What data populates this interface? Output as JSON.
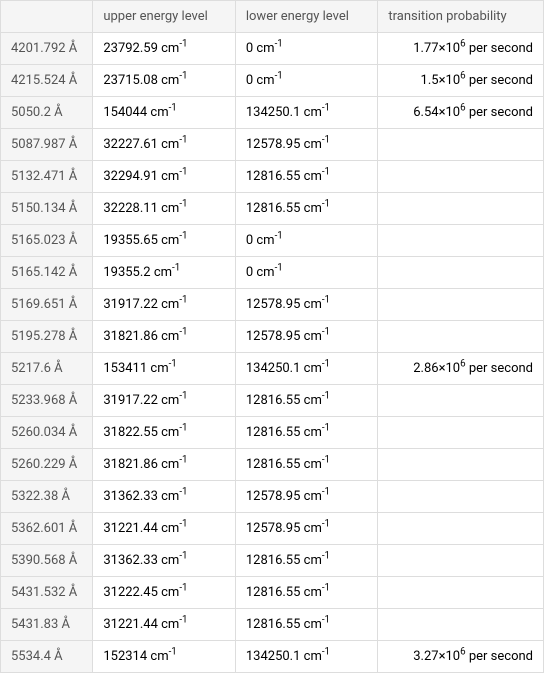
{
  "table": {
    "columns": [
      "",
      "upper energy level",
      "lower energy level",
      "transition probability"
    ],
    "rows": [
      {
        "wavelength": "4201.792 Å",
        "upper": "23792.59",
        "lower": "0",
        "prob_mantissa": "1.77",
        "prob_exp": "6",
        "prob_unit": "per second"
      },
      {
        "wavelength": "4215.524 Å",
        "upper": "23715.08",
        "lower": "0",
        "prob_mantissa": "1.5",
        "prob_exp": "6",
        "prob_unit": "per second"
      },
      {
        "wavelength": "5050.2 Å",
        "upper": "154044",
        "lower": "134250.1",
        "prob_mantissa": "6.54",
        "prob_exp": "6",
        "prob_unit": "per second"
      },
      {
        "wavelength": "5087.987 Å",
        "upper": "32227.61",
        "lower": "12578.95",
        "prob_mantissa": "",
        "prob_exp": "",
        "prob_unit": ""
      },
      {
        "wavelength": "5132.471 Å",
        "upper": "32294.91",
        "lower": "12816.55",
        "prob_mantissa": "",
        "prob_exp": "",
        "prob_unit": ""
      },
      {
        "wavelength": "5150.134 Å",
        "upper": "32228.11",
        "lower": "12816.55",
        "prob_mantissa": "",
        "prob_exp": "",
        "prob_unit": ""
      },
      {
        "wavelength": "5165.023 Å",
        "upper": "19355.65",
        "lower": "0",
        "prob_mantissa": "",
        "prob_exp": "",
        "prob_unit": ""
      },
      {
        "wavelength": "5165.142 Å",
        "upper": "19355.2",
        "lower": "0",
        "prob_mantissa": "",
        "prob_exp": "",
        "prob_unit": ""
      },
      {
        "wavelength": "5169.651 Å",
        "upper": "31917.22",
        "lower": "12578.95",
        "prob_mantissa": "",
        "prob_exp": "",
        "prob_unit": ""
      },
      {
        "wavelength": "5195.278 Å",
        "upper": "31821.86",
        "lower": "12578.95",
        "prob_mantissa": "",
        "prob_exp": "",
        "prob_unit": ""
      },
      {
        "wavelength": "5217.6 Å",
        "upper": "153411",
        "lower": "134250.1",
        "prob_mantissa": "2.86",
        "prob_exp": "6",
        "prob_unit": "per second"
      },
      {
        "wavelength": "5233.968 Å",
        "upper": "31917.22",
        "lower": "12816.55",
        "prob_mantissa": "",
        "prob_exp": "",
        "prob_unit": ""
      },
      {
        "wavelength": "5260.034 Å",
        "upper": "31822.55",
        "lower": "12816.55",
        "prob_mantissa": "",
        "prob_exp": "",
        "prob_unit": ""
      },
      {
        "wavelength": "5260.229 Å",
        "upper": "31821.86",
        "lower": "12816.55",
        "prob_mantissa": "",
        "prob_exp": "",
        "prob_unit": ""
      },
      {
        "wavelength": "5322.38 Å",
        "upper": "31362.33",
        "lower": "12578.95",
        "prob_mantissa": "",
        "prob_exp": "",
        "prob_unit": ""
      },
      {
        "wavelength": "5362.601 Å",
        "upper": "31221.44",
        "lower": "12578.95",
        "prob_mantissa": "",
        "prob_exp": "",
        "prob_unit": ""
      },
      {
        "wavelength": "5390.568 Å",
        "upper": "31362.33",
        "lower": "12816.55",
        "prob_mantissa": "",
        "prob_exp": "",
        "prob_unit": ""
      },
      {
        "wavelength": "5431.532 Å",
        "upper": "31222.45",
        "lower": "12816.55",
        "prob_mantissa": "",
        "prob_exp": "",
        "prob_unit": ""
      },
      {
        "wavelength": "5431.83 Å",
        "upper": "31221.44",
        "lower": "12816.55",
        "prob_mantissa": "",
        "prob_exp": "",
        "prob_unit": ""
      },
      {
        "wavelength": "5534.4 Å",
        "upper": "152314",
        "lower": "134250.1",
        "prob_mantissa": "3.27",
        "prob_exp": "6",
        "prob_unit": "per second"
      }
    ],
    "cm_unit": "cm",
    "cm_exp": "-1",
    "times_symbol": "×10",
    "background_color": "#ffffff",
    "header_bg": "#f5f5f5",
    "border_color": "#dddddd",
    "text_color_header": "#555555",
    "text_color_body": "#444444",
    "font_size": 13
  }
}
